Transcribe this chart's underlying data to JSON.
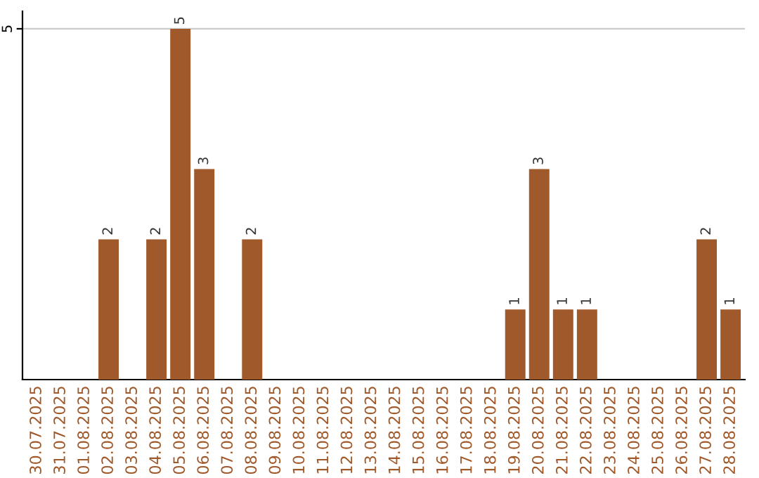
{
  "chart_data": {
    "type": "bar",
    "categories": [
      "30.07.2025",
      "31.07.2025",
      "01.08.2025",
      "02.08.2025",
      "03.08.2025",
      "04.08.2025",
      "05.08.2025",
      "06.08.2025",
      "07.08.2025",
      "08.08.2025",
      "09.08.2025",
      "10.08.2025",
      "11.08.2025",
      "12.08.2025",
      "13.08.2025",
      "14.08.2025",
      "15.08.2025",
      "16.08.2025",
      "17.08.2025",
      "18.08.2025",
      "19.08.2025",
      "20.08.2025",
      "21.08.2025",
      "22.08.2025",
      "23.08.2025",
      "24.08.2025",
      "25.08.2025",
      "26.08.2025",
      "27.08.2025",
      "28.08.2025"
    ],
    "values": [
      0,
      0,
      0,
      2,
      0,
      2,
      5,
      3,
      0,
      2,
      0,
      0,
      0,
      0,
      0,
      0,
      0,
      0,
      0,
      0,
      1,
      3,
      1,
      1,
      0,
      0,
      0,
      0,
      2,
      1
    ],
    "value_labels": [
      null,
      null,
      null,
      "2",
      null,
      "2",
      "5",
      "3",
      null,
      "2",
      null,
      null,
      null,
      null,
      null,
      null,
      null,
      null,
      null,
      null,
      "1",
      "3",
      "1",
      "1",
      null,
      null,
      null,
      null,
      "2",
      "1"
    ],
    "color": "#a0592a",
    "ylim": [
      0,
      5.25
    ],
    "yticks": [
      5
    ],
    "grid": "y"
  }
}
